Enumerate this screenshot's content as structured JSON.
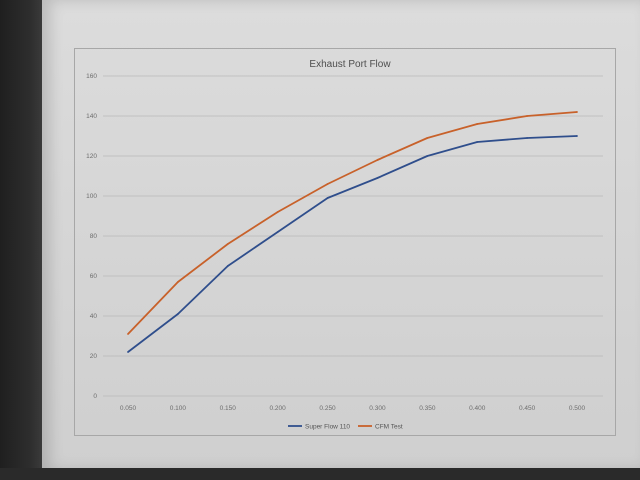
{
  "chart_data": {
    "type": "line",
    "title": "Exhaust Port Flow",
    "categories": [
      "0.050",
      "0.100",
      "0.150",
      "0.200",
      "0.250",
      "0.300",
      "0.350",
      "0.400",
      "0.450",
      "0.500"
    ],
    "y_ticks": [
      "0",
      "20",
      "40",
      "60",
      "80",
      "100",
      "120",
      "140",
      "160"
    ],
    "ylim": [
      0,
      160
    ],
    "grid": true,
    "legend_position": "bottom",
    "series": [
      {
        "name": "Super Flow 110",
        "color": "#2f4e8c",
        "values": [
          22,
          41,
          65,
          82,
          99,
          109,
          120,
          127,
          129,
          130
        ]
      },
      {
        "name": "CFM Test",
        "color": "#c8612a",
        "values": [
          31,
          57,
          76,
          92,
          106,
          118,
          129,
          136,
          140,
          142
        ]
      }
    ]
  }
}
